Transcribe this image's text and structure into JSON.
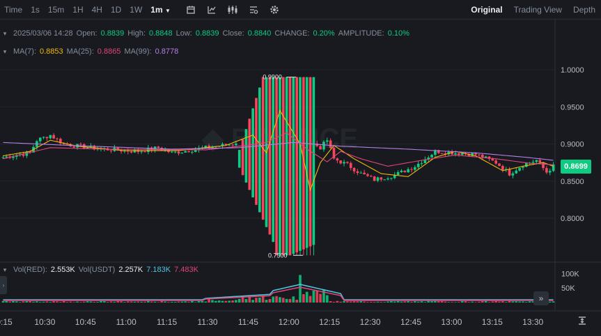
{
  "toolbar": {
    "time_label": "Time",
    "intervals": [
      "1s",
      "15m",
      "1H",
      "4H",
      "1D",
      "1W"
    ],
    "active_interval": "1m",
    "views": [
      "Original",
      "Trading View",
      "Depth"
    ],
    "active_view": "Original",
    "icons": [
      "calendar-icon",
      "indicator-icon",
      "candle-type-icon",
      "settings-list-icon",
      "gear-icon"
    ]
  },
  "ohlc": {
    "date": "2025/03/06 14:28",
    "open_label": "Open:",
    "open": "0.8839",
    "high_label": "High:",
    "high": "0.8848",
    "low_label": "Low:",
    "low": "0.8839",
    "close_label": "Close:",
    "close": "0.8840",
    "change_label": "CHANGE:",
    "change": "0.20%",
    "amplitude_label": "AMPLITUDE:",
    "amplitude": "0.10%"
  },
  "ma": {
    "ma7_label": "MA(7):",
    "ma7": "0.8853",
    "ma7_color": "#f0b90b",
    "ma25_label": "MA(25):",
    "ma25": "0.8865",
    "ma25_color": "#e0457b",
    "ma99_label": "MA(99):",
    "ma99": "0.8778",
    "ma99_color": "#b67ee8"
  },
  "volume_info": {
    "label": "Vol(RED):",
    "value": "2.553K",
    "usdt_label": "Vol(USDT)",
    "usdt_value": "2.257K",
    "ma1": "7.183K",
    "ma1_color": "#4fc3dc",
    "ma2": "7.483K",
    "ma2_color": "#e0457b"
  },
  "current_price": "0.8699",
  "annotations": {
    "high": "0.9900",
    "low": "0.7500"
  },
  "y_axis": [
    "1.0000",
    "0.9500",
    "0.9000",
    "0.8500",
    "0.8000"
  ],
  "vol_axis": [
    "100K",
    "50K"
  ],
  "x_axis": [
    "0:15",
    "10:30",
    "10:45",
    "11:00",
    "11:15",
    "11:30",
    "11:45",
    "12:00",
    "12:15",
    "12:30",
    "12:45",
    "13:00",
    "13:15",
    "13:30"
  ],
  "colors": {
    "up": "#0ecb81",
    "down": "#f6465d",
    "background": "#181a20"
  },
  "chart_data": {
    "type": "candlestick",
    "ylim": [
      0.75,
      1.0
    ],
    "y_ticks": [
      1.0,
      0.95,
      0.9,
      0.85,
      0.8
    ],
    "x_ticks": [
      "0:15",
      "10:30",
      "10:45",
      "11:00",
      "11:15",
      "11:30",
      "11:45",
      "12:00",
      "12:15",
      "12:30",
      "12:45",
      "13:00",
      "13:15",
      "13:30"
    ],
    "interval": "1m",
    "close_path": [
      [
        0,
        0.882
      ],
      [
        8,
        0.888
      ],
      [
        10,
        0.905
      ],
      [
        14,
        0.912
      ],
      [
        18,
        0.9
      ],
      [
        24,
        0.896
      ],
      [
        30,
        0.893
      ],
      [
        40,
        0.89
      ],
      [
        46,
        0.895
      ],
      [
        50,
        0.888
      ],
      [
        56,
        0.892
      ],
      [
        60,
        0.895
      ],
      [
        68,
        0.9
      ],
      [
        72,
        0.908
      ],
      [
        74,
        0.92
      ],
      [
        76,
        0.885
      ],
      [
        78,
        0.86
      ],
      [
        80,
        0.93
      ],
      [
        82,
        0.97
      ],
      [
        84,
        0.88
      ],
      [
        86,
        0.835
      ],
      [
        88,
        0.81
      ],
      [
        90,
        0.86
      ],
      [
        92,
        0.9
      ],
      [
        94,
        0.895
      ],
      [
        96,
        0.905
      ],
      [
        98,
        0.88
      ],
      [
        102,
        0.872
      ],
      [
        106,
        0.86
      ],
      [
        110,
        0.852
      ],
      [
        116,
        0.858
      ],
      [
        122,
        0.87
      ],
      [
        128,
        0.89
      ],
      [
        134,
        0.888
      ],
      [
        140,
        0.886
      ],
      [
        146,
        0.875
      ],
      [
        150,
        0.86
      ],
      [
        154,
        0.872
      ],
      [
        158,
        0.878
      ],
      [
        161,
        0.862
      ],
      [
        163,
        0.87
      ]
    ],
    "high_mark": 0.99,
    "low_mark": 0.75,
    "ma_series": [
      {
        "name": "MA(7)",
        "values": [
          [
            0,
            0.884
          ],
          [
            8,
            0.89
          ],
          [
            14,
            0.905
          ],
          [
            22,
            0.897
          ],
          [
            36,
            0.891
          ],
          [
            52,
            0.891
          ],
          [
            66,
            0.898
          ],
          [
            74,
            0.912
          ],
          [
            78,
            0.888
          ],
          [
            82,
            0.945
          ],
          [
            86,
            0.915
          ],
          [
            88,
            0.9
          ],
          [
            91,
            0.838
          ],
          [
            94,
            0.875
          ],
          [
            98,
            0.898
          ],
          [
            104,
            0.88
          ],
          [
            112,
            0.86
          ],
          [
            120,
            0.856
          ],
          [
            128,
            0.882
          ],
          [
            134,
            0.89
          ],
          [
            140,
            0.884
          ],
          [
            148,
            0.864
          ],
          [
            154,
            0.87
          ],
          [
            160,
            0.875
          ],
          [
            163,
            0.87
          ]
        ]
      },
      {
        "name": "MA(25)",
        "values": [
          [
            0,
            0.88
          ],
          [
            14,
            0.895
          ],
          [
            30,
            0.893
          ],
          [
            60,
            0.892
          ],
          [
            72,
            0.898
          ],
          [
            78,
            0.902
          ],
          [
            84,
            0.915
          ],
          [
            90,
            0.893
          ],
          [
            96,
            0.876
          ],
          [
            100,
            0.89
          ],
          [
            106,
            0.88
          ],
          [
            114,
            0.87
          ],
          [
            124,
            0.878
          ],
          [
            134,
            0.885
          ],
          [
            146,
            0.88
          ],
          [
            156,
            0.874
          ],
          [
            163,
            0.872
          ]
        ]
      },
      {
        "name": "MA(99)",
        "values": [
          [
            0,
            0.902
          ],
          [
            20,
            0.898
          ],
          [
            50,
            0.893
          ],
          [
            70,
            0.895
          ],
          [
            86,
            0.902
          ],
          [
            100,
            0.897
          ],
          [
            120,
            0.893
          ],
          [
            140,
            0.888
          ],
          [
            155,
            0.882
          ],
          [
            163,
            0.878
          ]
        ]
      }
    ],
    "volume_ylim": [
      0,
      120000
    ],
    "volume_ticks": [
      100000,
      50000
    ]
  }
}
